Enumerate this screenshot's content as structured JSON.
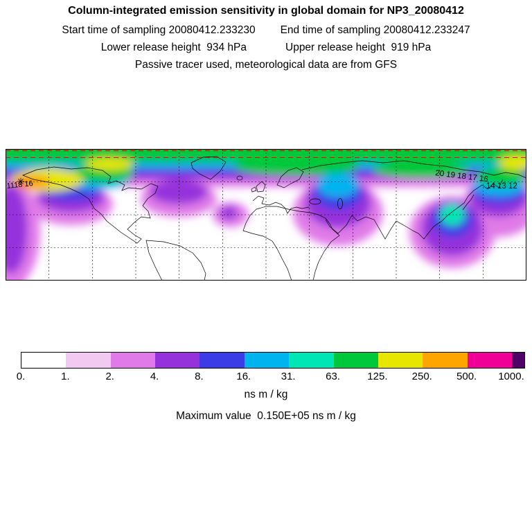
{
  "header": {
    "title": "Column-integrated emission sensitivity in global domain for NP3_20080412",
    "start_time": "Start time of sampling 20080412.233230",
    "end_time": "End time of sampling 20080412.233247",
    "lower_release": "Lower release height  934 hPa",
    "upper_release": "Upper release height  919 hPa",
    "tracer_line": "Passive tracer used, meteorological data are from GFS"
  },
  "map": {
    "marker_glyph": "✳",
    "labels": [
      {
        "text": "1118 16"
      },
      {
        "text": "20 19 18 17 16"
      },
      {
        "text": "14 13 12"
      }
    ]
  },
  "colorbar": {
    "unit_label": "ns m / kg",
    "max_label": "Maximum value  0.150E+05 ns m / kg",
    "ticks": [
      "0.",
      "1.",
      "2.",
      "4.",
      "8.",
      "16.",
      "31.",
      "63.",
      "125.",
      "250.",
      "500.",
      "1000."
    ],
    "colors": [
      "#ffffff",
      "#f1c9f1",
      "#e07ae8",
      "#9632dc",
      "#3c3ce6",
      "#00b4f0",
      "#00e6b4",
      "#00c83c",
      "#e6e600",
      "#ffa500",
      "#f00096",
      "#500064"
    ],
    "segment_widths": [
      1,
      1,
      1,
      1,
      1,
      1,
      1,
      1,
      1,
      1,
      1,
      0.28
    ]
  },
  "chart_data": {
    "type": "heatmap",
    "title": "Column-integrated emission sensitivity in global domain for NP3_20080412",
    "field": "column-integrated emission sensitivity",
    "units": "ns m / kg",
    "scale_type": "discrete, roughly doubling levels",
    "scale_ticks": [
      0,
      1,
      2,
      4,
      8,
      16,
      31,
      63,
      125,
      250,
      500,
      1000
    ],
    "palette": [
      "#ffffff",
      "#f1c9f1",
      "#e07ae8",
      "#9632dc",
      "#3c3ce6",
      "#00b4f0",
      "#00e6b4",
      "#00c83c",
      "#e6e600",
      "#ffa500",
      "#f00096",
      "#500064"
    ],
    "max_value_text": "0.150E+05",
    "max_value": 15000,
    "sampling_start": "20080412.233230",
    "sampling_end": "20080412.233247",
    "lower_release_height_hPa": 934,
    "upper_release_height_hPa": 919,
    "tracer": "Passive tracer",
    "meteorology": "GFS",
    "map": {
      "projection": "equirectangular, global domain",
      "lat_range": [
        -30,
        90
      ],
      "gridline_spacing_deg": 30,
      "lon_divisions": 12,
      "lat_divisions": 4,
      "grid_style": "black dashed",
      "domain_outline": "red dashed line along top edge",
      "release_marker": "black asterisk over the Gulf of Alaska",
      "trajectory_labels": [
        "1118 16",
        "20 19 18 17 16",
        "14 13 12"
      ],
      "plume_description": "High-sensitivity band (green/cyan core with blue and violet fringes) spanning northern mid-to-high latitudes around the globe; yellow/orange maximum near the release point west of North America; violet lobes extend south over the eastern Pacific, central Asia and the western Pacific near Japan."
    }
  }
}
